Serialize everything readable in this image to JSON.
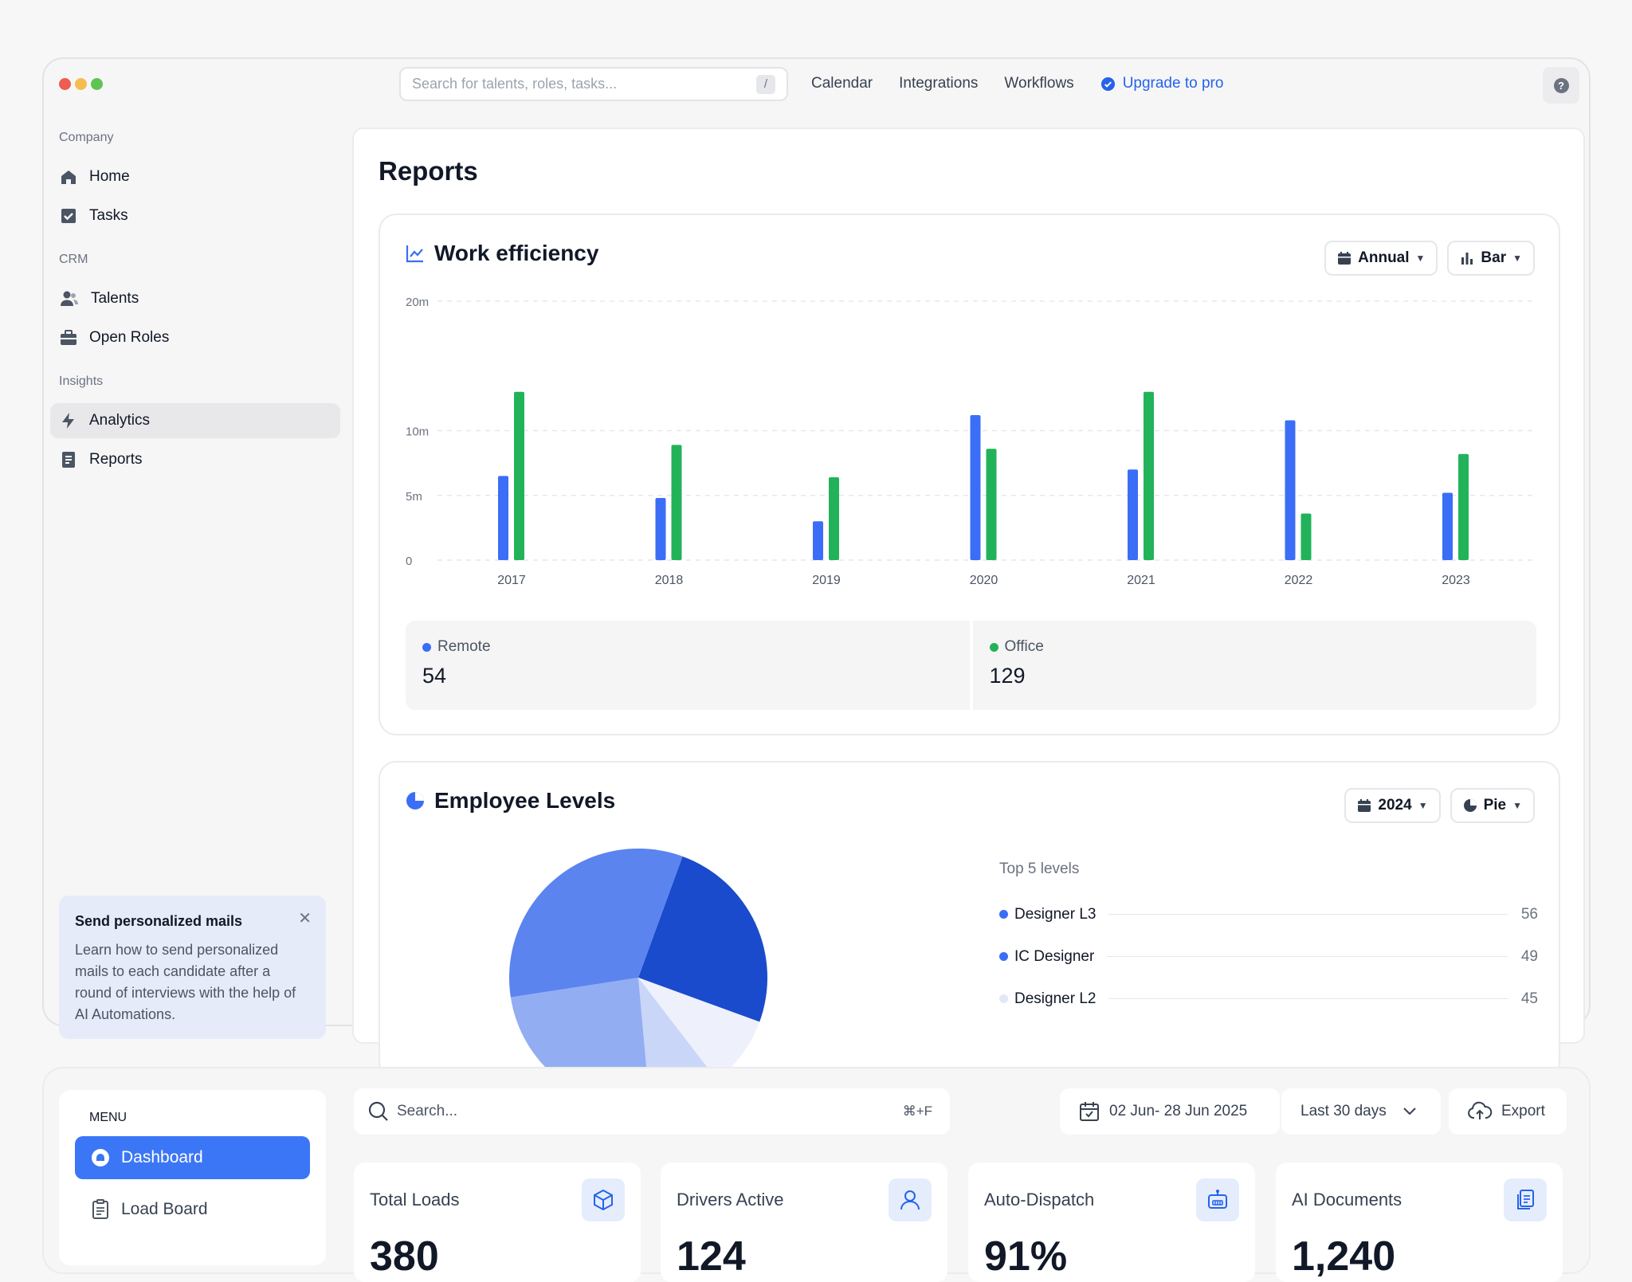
{
  "topbar": {
    "search_placeholder": "Search for talents, roles, tasks...",
    "search_shortcut": "/",
    "nav": [
      "Calendar",
      "Integrations",
      "Workflows"
    ],
    "upgrade": "Upgrade to pro"
  },
  "sidebar": {
    "sections": [
      {
        "label": "Company",
        "items": [
          {
            "label": "Home",
            "icon": "home-icon"
          },
          {
            "label": "Tasks",
            "icon": "checkbox-icon"
          }
        ]
      },
      {
        "label": "CRM",
        "items": [
          {
            "label": "Talents",
            "icon": "users-icon"
          },
          {
            "label": "Open Roles",
            "icon": "briefcase-icon"
          }
        ]
      },
      {
        "label": "Insights",
        "items": [
          {
            "label": "Analytics",
            "icon": "bolt-icon",
            "active": true
          },
          {
            "label": "Reports",
            "icon": "document-icon"
          }
        ]
      }
    ],
    "promo": {
      "title": "Send personalized mails",
      "body": "Learn how to send personalized mails to each candidate after a round of interviews with the help of AI Automations."
    }
  },
  "main": {
    "title": "Reports",
    "efficiency": {
      "title": "Work efficiency",
      "period": "Annual",
      "chart_type": "Bar",
      "legend": [
        {
          "name": "Remote",
          "value": "54"
        },
        {
          "name": "Office",
          "value": "129"
        }
      ]
    },
    "levels": {
      "title": "Employee Levels",
      "year": "2024",
      "chart_type": "Pie",
      "list_title": "Top 5 levels",
      "items": [
        {
          "name": "Designer L3",
          "value": "56",
          "color": "#3b6ef6"
        },
        {
          "name": "IC Designer",
          "value": "49",
          "color": "#3b6ef6"
        },
        {
          "name": "Designer L2",
          "value": "45",
          "color": "#e3e8f8"
        }
      ]
    }
  },
  "chart_data": [
    {
      "type": "bar",
      "title": "Work efficiency",
      "categories": [
        "2017",
        "2018",
        "2019",
        "2020",
        "2021",
        "2022",
        "2023"
      ],
      "y_ticks": [
        "0",
        "5m",
        "10m",
        "20m"
      ],
      "ylim": [
        0,
        20
      ],
      "grid": true,
      "series": [
        {
          "name": "Remote",
          "color": "#3b6ef6",
          "values": [
            6.5,
            4.8,
            3.0,
            11.2,
            7.0,
            10.8,
            5.2
          ]
        },
        {
          "name": "Office",
          "color": "#22b35a",
          "values": [
            13.0,
            8.9,
            6.4,
            8.6,
            13.0,
            3.6,
            8.2
          ]
        }
      ]
    },
    {
      "type": "pie",
      "title": "Employee Levels",
      "slices": [
        {
          "value": 25,
          "color": "#1a4bcc"
        },
        {
          "value": 9,
          "color": "#eef1fc"
        },
        {
          "value": 9,
          "color": "#c9d6f8"
        },
        {
          "value": 24,
          "color": "#93adf3"
        },
        {
          "value": 33,
          "color": "#5b84ef"
        }
      ]
    }
  ],
  "bottom": {
    "menu_title": "MENU",
    "menu_items": [
      "Dashboard",
      "Load Board"
    ],
    "search_placeholder": "Search...",
    "search_shortcut": "⌘+F",
    "date_range": "02 Jun- 28 Jun 2025",
    "period": "Last 30 days",
    "export": "Export",
    "stats": [
      {
        "label": "Total Loads",
        "value": "380"
      },
      {
        "label": "Drivers Active",
        "value": "124"
      },
      {
        "label": "Auto-Dispatch",
        "value": "91%"
      },
      {
        "label": "AI Documents",
        "value": "1,240"
      }
    ]
  },
  "colors": {
    "accent": "#3b6ef6",
    "office": "#22b35a",
    "active_menu": "#3b76f6"
  }
}
